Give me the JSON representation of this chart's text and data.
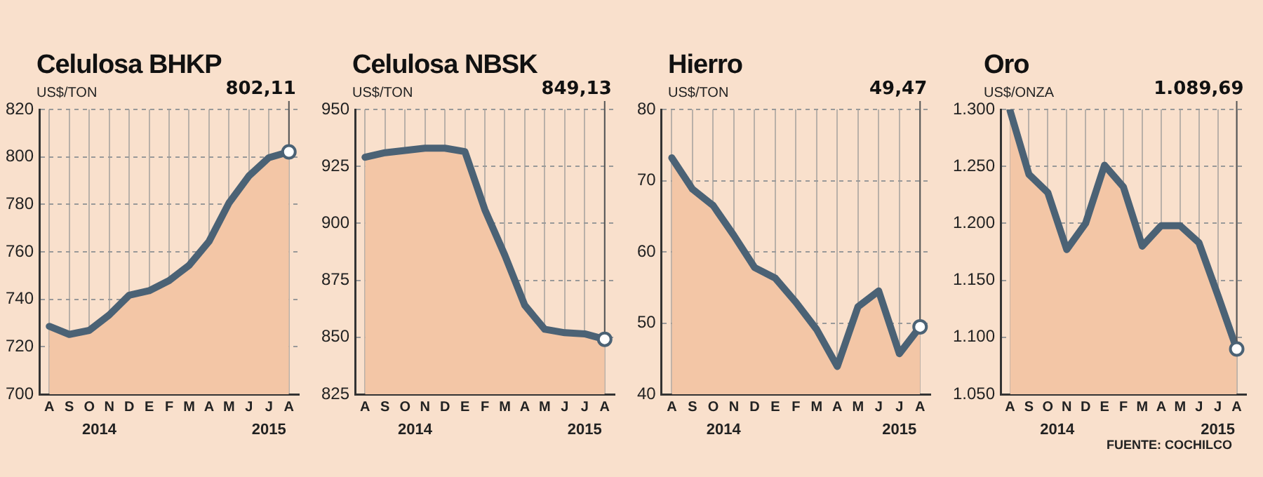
{
  "chart_data": [
    {
      "type": "area",
      "title": "Celulosa BHKP",
      "subtitle": "US$/TON",
      "categories": [
        "A",
        "S",
        "O",
        "N",
        "D",
        "E",
        "F",
        "M",
        "A",
        "M",
        "J",
        "J",
        "A"
      ],
      "series": [
        {
          "type": "area",
          "color": "#f3c6a6",
          "values": [
            728.6,
            725.2,
            726.9,
            733.4,
            741.7,
            743.6,
            747.9,
            754.3,
            764.4,
            780.6,
            792,
            799.7,
            802.11
          ]
        },
        {
          "type": "line",
          "color": "#4b6275",
          "values": [
            728.6,
            725.2,
            726.9,
            733.4,
            741.7,
            743.6,
            747.9,
            754.3,
            764.4,
            780.6,
            792,
            799.7,
            802.11
          ],
          "value_labels": [
            null,
            null,
            null,
            null,
            null,
            null,
            null,
            null,
            null,
            null,
            null,
            null,
            "802,11"
          ]
        }
      ],
      "ylim": [
        700,
        820
      ],
      "yticks": [
        700,
        720,
        740,
        760,
        780,
        800,
        820
      ],
      "grid": true,
      "annotations": [
        "2014",
        "2015"
      ]
    },
    {
      "type": "area",
      "title": "Celulosa NBSK",
      "subtitle": "US$/TON",
      "categories": [
        "A",
        "S",
        "O",
        "N",
        "D",
        "E",
        "F",
        "M",
        "A",
        "M",
        "J",
        "J",
        "A"
      ],
      "series": [
        {
          "type": "area",
          "color": "#f3c6a6",
          "values": [
            929,
            931,
            932,
            933,
            933,
            931.5,
            906,
            886,
            864,
            853.5,
            852,
            851.5,
            849.13
          ]
        },
        {
          "type": "line",
          "color": "#4b6275",
          "values": [
            929,
            931,
            932,
            933,
            933,
            931.5,
            906,
            886,
            864,
            853.5,
            852,
            851.5,
            849.13
          ],
          "value_labels": [
            null,
            null,
            null,
            null,
            null,
            null,
            null,
            null,
            null,
            null,
            null,
            null,
            "849,13"
          ]
        }
      ],
      "ylim": [
        825,
        950
      ],
      "yticks": [
        825,
        850,
        875,
        900,
        925,
        950
      ],
      "grid": true,
      "annotations": [
        "2014",
        "2015"
      ]
    },
    {
      "type": "area",
      "title": "Hierro",
      "subtitle": "US$/TON",
      "categories": [
        "A",
        "S",
        "O",
        "N",
        "D",
        "E",
        "F",
        "M",
        "A",
        "M",
        "J",
        "J",
        "A"
      ],
      "series": [
        {
          "type": "area",
          "color": "#f3c6a6",
          "values": [
            73.2,
            68.8,
            66.5,
            62.3,
            57.8,
            56.3,
            52.9,
            49.1,
            43.9,
            52.3,
            54.5,
            45.7,
            49.47
          ]
        },
        {
          "type": "line",
          "color": "#4b6275",
          "values": [
            73.2,
            68.8,
            66.5,
            62.3,
            57.8,
            56.3,
            52.9,
            49.1,
            43.9,
            52.3,
            54.5,
            45.7,
            49.47
          ],
          "value_labels": [
            null,
            null,
            null,
            null,
            null,
            null,
            null,
            null,
            null,
            null,
            null,
            null,
            "49,47"
          ]
        }
      ],
      "ylim": [
        40,
        80
      ],
      "yticks": [
        40,
        50,
        60,
        70,
        80
      ],
      "grid": true,
      "annotations": [
        "2014",
        "2015"
      ]
    },
    {
      "type": "area",
      "title": "Oro",
      "subtitle": "US$/ONZA",
      "categories": [
        "A",
        "S",
        "O",
        "N",
        "D",
        "E",
        "F",
        "M",
        "A",
        "M",
        "J",
        "J",
        "A"
      ],
      "series": [
        {
          "type": "area",
          "color": "#f3c6a6",
          "values": [
            1299,
            1243,
            1227,
            1177,
            1200,
            1251,
            1232,
            1180,
            1198,
            1198,
            1183,
            1137,
            1089.69
          ]
        },
        {
          "type": "line",
          "color": "#4b6275",
          "values": [
            1299,
            1243,
            1227,
            1177,
            1200,
            1251,
            1232,
            1180,
            1198,
            1198,
            1183,
            1137,
            1089.69
          ],
          "value_labels": [
            null,
            null,
            null,
            null,
            null,
            null,
            null,
            null,
            null,
            null,
            null,
            null,
            "1.089,69"
          ]
        }
      ],
      "ylim": [
        1050,
        1300
      ],
      "yticks": [
        {
          "value": 1050,
          "label": "1.050"
        },
        {
          "value": 1100,
          "label": "1.100"
        },
        {
          "value": 1150,
          "label": "1.150"
        },
        {
          "value": 1200,
          "label": "1.200"
        },
        {
          "value": 1250,
          "label": "1.250"
        },
        {
          "value": 1300,
          "label": "1.300"
        }
      ],
      "grid": true,
      "annotations": [
        "2014",
        "2015",
        "FUENTE: COCHILCO"
      ]
    }
  ]
}
